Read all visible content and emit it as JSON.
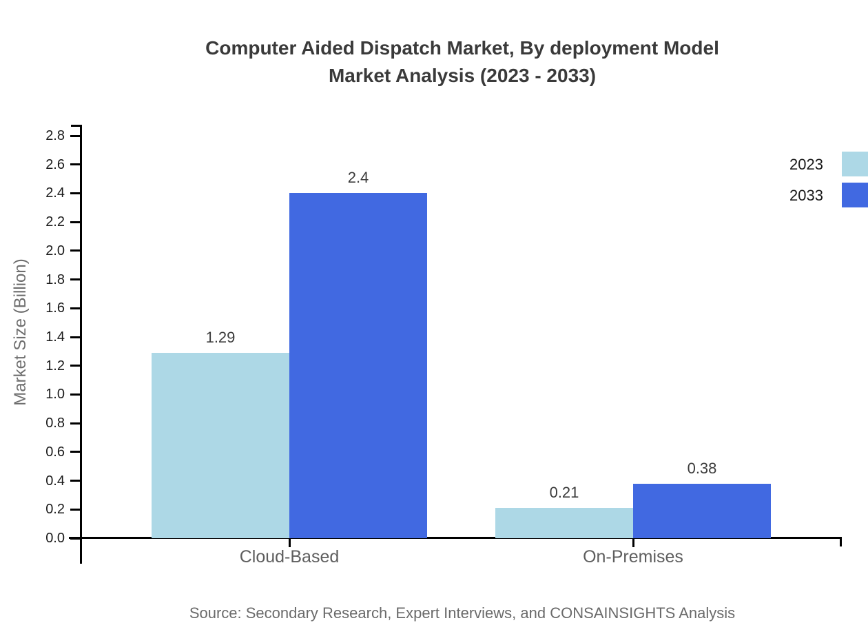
{
  "title": {
    "line1": "Computer Aided Dispatch Market, By deployment Model",
    "line2": "Market Analysis (2023 - 2033)"
  },
  "source": "Source: Secondary Research, Expert Interviews, and CONSAINSIGHTS Analysis",
  "chart_data": {
    "type": "bar",
    "title": "Computer Aided Dispatch Market, By deployment Model Market Analysis (2023 - 2033)",
    "categories": [
      "Cloud-Based",
      "On-Premises"
    ],
    "series": [
      {
        "name": "2023",
        "color": "#add8e6",
        "values": [
          1.29,
          0.21
        ]
      },
      {
        "name": "2033",
        "color": "#4169e1",
        "values": [
          2.4,
          0.38
        ]
      }
    ],
    "xlabel": "",
    "ylabel": "Market Size (Billion)",
    "ylim": [
      0,
      2.8
    ],
    "ytick_step": 0.2,
    "ytick_labels": [
      "0.0",
      "0.2",
      "0.4",
      "0.6",
      "0.8",
      "1.0",
      "1.2",
      "1.4",
      "1.6",
      "1.8",
      "2.0",
      "2.2",
      "2.4",
      "2.6",
      "2.8"
    ],
    "value_labels": [
      "1.29",
      "2.4",
      "0.21",
      "0.38"
    ],
    "grid": false,
    "legend_position": "top-right"
  }
}
